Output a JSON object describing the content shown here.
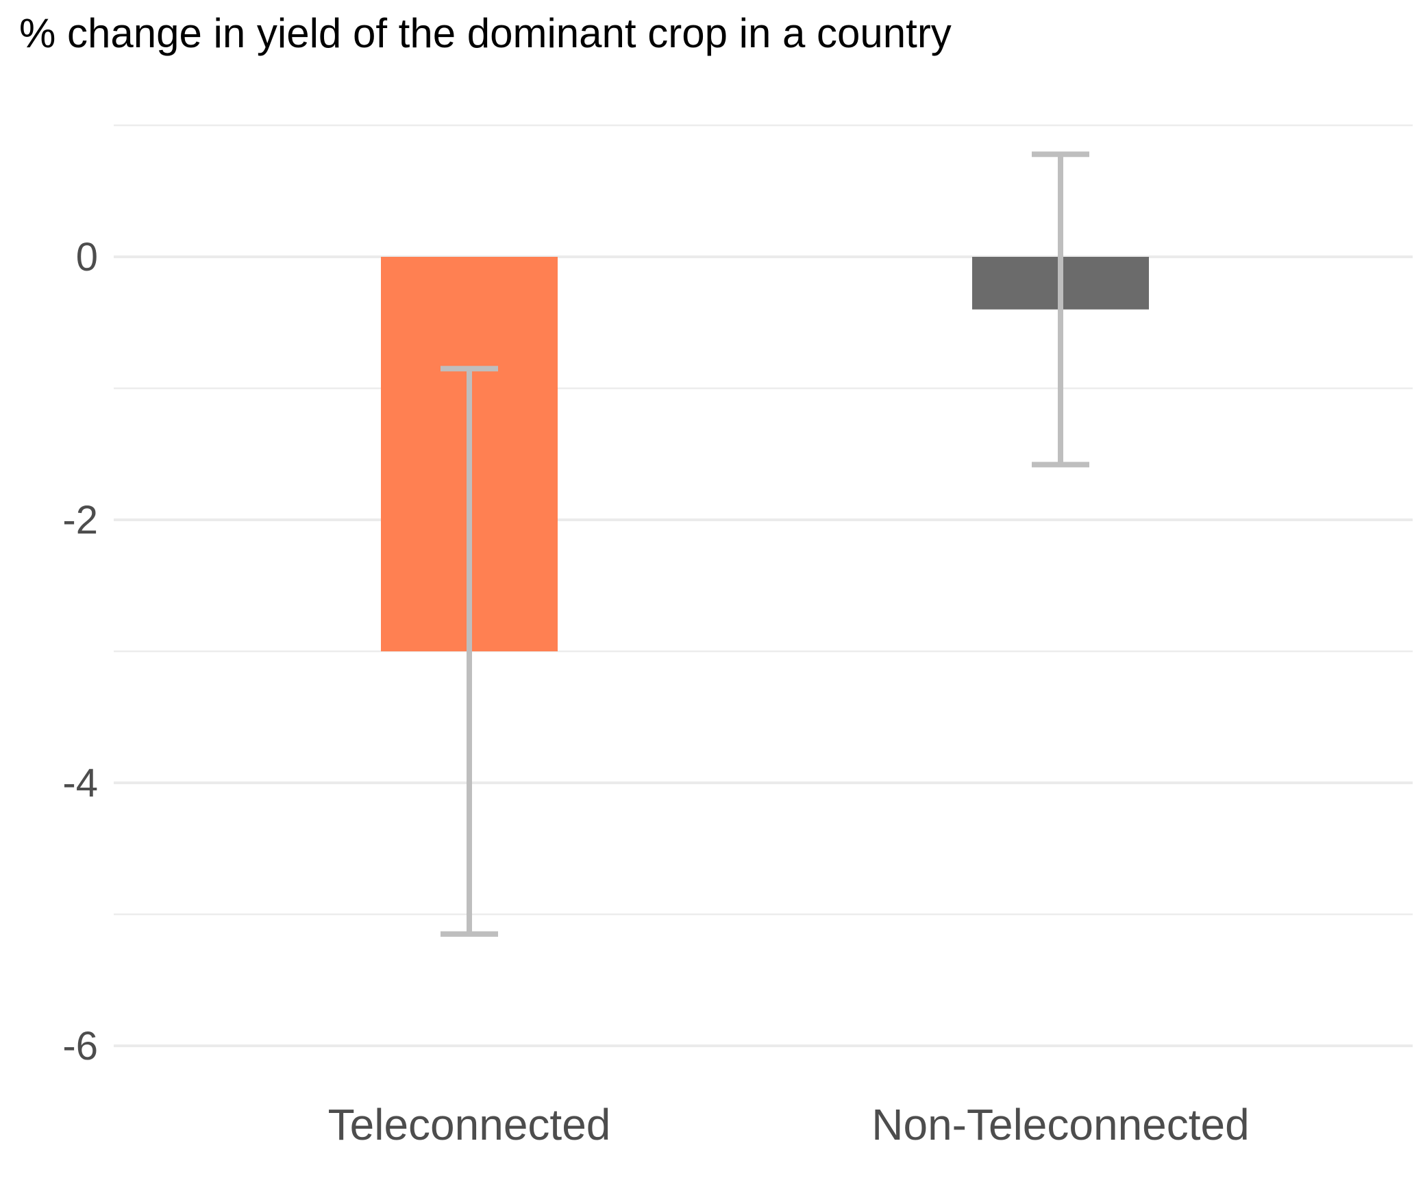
{
  "chart_data": {
    "type": "bar",
    "title": "% change in yield of the dominant crop in a country",
    "xlabel": "",
    "ylabel": "",
    "categories": [
      "Teleconnected",
      "Non-Teleconnected"
    ],
    "values": [
      -3.0,
      -0.4
    ],
    "error_bars": {
      "lower": [
        -5.15,
        -1.58
      ],
      "upper": [
        -0.85,
        0.78
      ]
    },
    "bar_colors": [
      "#ff8052",
      "#6b6b6b"
    ],
    "error_bar_color": "#bebebe",
    "ylim": [
      -6.3,
      1.0
    ],
    "yticks": [
      0,
      -2,
      -4,
      -6
    ],
    "ytick_labels": [
      "0",
      "-2",
      "-4",
      "-6"
    ],
    "grid": true,
    "minor_grid": true,
    "legend": "none"
  }
}
